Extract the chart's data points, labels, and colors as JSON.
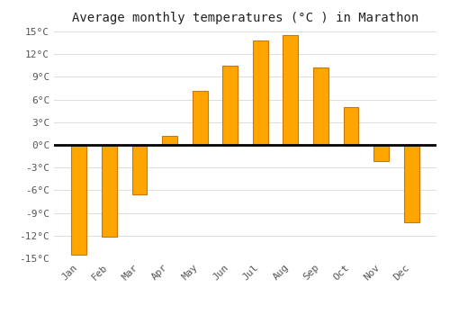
{
  "title": "Average monthly temperatures (°C ) in Marathon",
  "months": [
    "Jan",
    "Feb",
    "Mar",
    "Apr",
    "May",
    "Jun",
    "Jul",
    "Aug",
    "Sep",
    "Oct",
    "Nov",
    "Dec"
  ],
  "values": [
    -14.5,
    -12.2,
    -6.5,
    1.2,
    7.2,
    10.5,
    13.8,
    14.5,
    10.2,
    5.0,
    -2.2,
    -10.2
  ],
  "bar_color": "#FFA500",
  "bar_edge_color": "#CC7700",
  "ylim": [
    -15,
    15
  ],
  "yticks": [
    -15,
    -12,
    -9,
    -6,
    -3,
    0,
    3,
    6,
    9,
    12,
    15
  ],
  "ytick_labels": [
    "-15°C",
    "-12°C",
    "-9°C",
    "-6°C",
    "-3°C",
    "0°C",
    "3°C",
    "6°C",
    "9°C",
    "12°C",
    "15°C"
  ],
  "background_color": "#ffffff",
  "grid_color": "#dddddd",
  "title_fontsize": 10,
  "tick_fontsize": 8,
  "bar_width": 0.5
}
